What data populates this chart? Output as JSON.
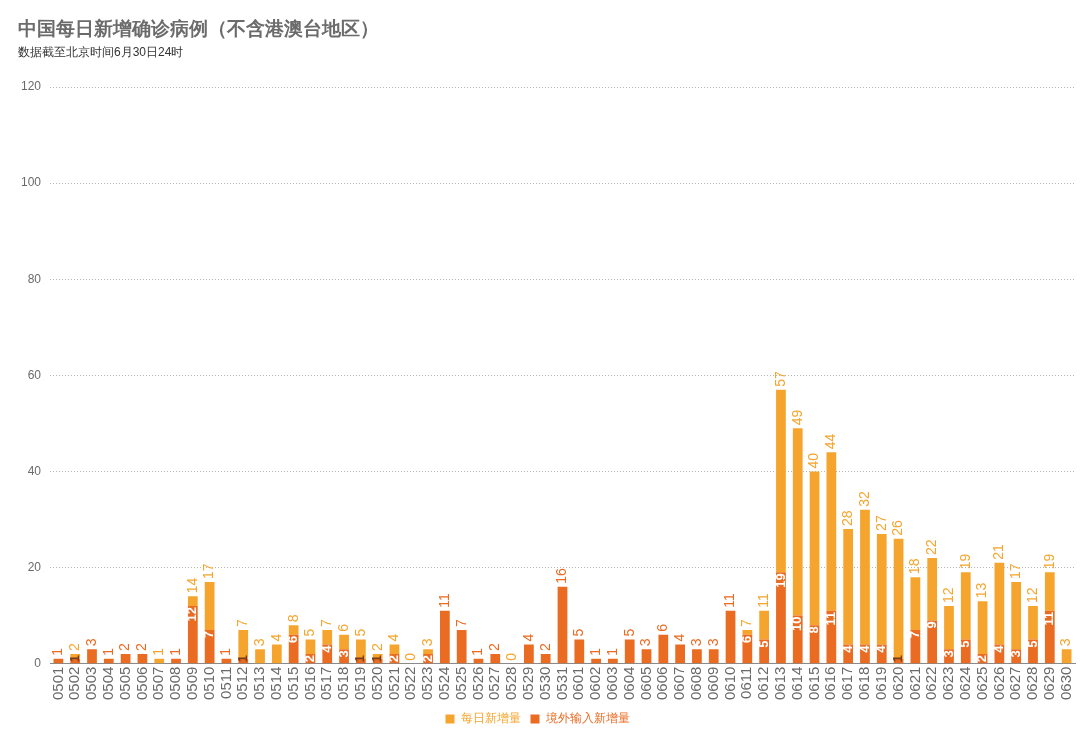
{
  "chart_data": {
    "type": "bar",
    "title": "中国每日新增确诊病例（不含港澳台地区）",
    "subtitle": "数据截至北京时间6月30日24时",
    "categories": [
      "0501",
      "0502",
      "0503",
      "0504",
      "0505",
      "0506",
      "0507",
      "0508",
      "0509",
      "0510",
      "0511",
      "0512",
      "0513",
      "0514",
      "0515",
      "0516",
      "0517",
      "0518",
      "0519",
      "0520",
      "0521",
      "0522",
      "0523",
      "0524",
      "0525",
      "0526",
      "0527",
      "0528",
      "0529",
      "0530",
      "0531",
      "0601",
      "0602",
      "0603",
      "0604",
      "0605",
      "0606",
      "0607",
      "0608",
      "0609",
      "0610",
      "0611",
      "0612",
      "0613",
      "0614",
      "0615",
      "0616",
      "0617",
      "0618",
      "0619",
      "0620",
      "0621",
      "0622",
      "0623",
      "0624",
      "0625",
      "0626",
      "0627",
      "0628",
      "0629",
      "0630"
    ],
    "stacked": true,
    "series": [
      {
        "name": "境外输入新增量",
        "color": "#ea6b22",
        "values": [
          1,
          1,
          3,
          1,
          2,
          2,
          0,
          1,
          12,
          7,
          1,
          1,
          0,
          0,
          6,
          2,
          4,
          3,
          1,
          1,
          2,
          0,
          2,
          11,
          7,
          1,
          2,
          0,
          4,
          2,
          16,
          5,
          1,
          1,
          5,
          3,
          6,
          4,
          3,
          3,
          11,
          6,
          5,
          19,
          10,
          8,
          11,
          4,
          4,
          4,
          1,
          7,
          9,
          3,
          5,
          2,
          4,
          3,
          5,
          11,
          0
        ],
        "value_labels": [
          "1",
          "1",
          "3",
          "1",
          "2",
          "2",
          null,
          "1",
          "12",
          "7",
          "1",
          "1",
          null,
          null,
          "6",
          "2",
          "4",
          "3",
          "1",
          "1",
          "2",
          null,
          "2",
          "11",
          "7",
          "1",
          "2",
          null,
          "4",
          "2",
          "16",
          "5",
          "1",
          "1",
          "5",
          "3",
          "6",
          "4",
          "3",
          "3",
          "11",
          "6",
          "5",
          "19",
          "10",
          "8",
          "11",
          "4",
          "4",
          "4",
          "1",
          "7",
          "9",
          "3",
          "5",
          "2",
          "4",
          "3",
          "5",
          "11",
          null
        ]
      },
      {
        "name": "每日新增量",
        "color": "#f5a52d",
        "values": [
          0,
          1,
          0,
          0,
          0,
          0,
          1,
          0,
          2,
          10,
          0,
          6,
          3,
          4,
          2,
          3,
          3,
          3,
          4,
          1,
          2,
          0,
          1,
          0,
          0,
          0,
          0,
          0,
          0,
          0,
          0,
          0,
          0,
          0,
          0,
          0,
          0,
          0,
          0,
          0,
          0,
          1,
          6,
          38,
          39,
          32,
          33,
          24,
          28,
          23,
          25,
          11,
          13,
          9,
          14,
          11,
          17,
          14,
          7,
          8,
          3
        ],
        "value_labels": [
          null,
          null,
          null,
          null,
          null,
          null,
          "1",
          null,
          null,
          null,
          null,
          null,
          "3",
          "4",
          null,
          null,
          null,
          null,
          null,
          null,
          null,
          null,
          null,
          null,
          null,
          null,
          null,
          null,
          null,
          null,
          null,
          null,
          null,
          null,
          null,
          null,
          null,
          null,
          null,
          null,
          null,
          null,
          null,
          null,
          null,
          null,
          null,
          null,
          null,
          null,
          null,
          null,
          null,
          null,
          null,
          null,
          null,
          null,
          null,
          null,
          "3"
        ]
      }
    ],
    "totals": [
      null,
      "2",
      null,
      null,
      null,
      null,
      null,
      null,
      "14",
      "17",
      null,
      "7",
      null,
      null,
      "8",
      "5",
      "7",
      "6",
      "5",
      "2",
      "4",
      "0",
      "3",
      null,
      null,
      null,
      null,
      "0",
      null,
      null,
      null,
      null,
      null,
      null,
      null,
      null,
      null,
      null,
      null,
      null,
      null,
      "7",
      "11",
      "57",
      "49",
      "40",
      "44",
      "28",
      "32",
      "27",
      "26",
      "18",
      "22",
      "12",
      "19",
      "13",
      "21",
      "17",
      "12",
      "19",
      null
    ],
    "ylim": [
      0,
      120
    ],
    "yticks": [
      0,
      20,
      40,
      60,
      80,
      100,
      120
    ],
    "grid": "y",
    "legend": "bottom"
  }
}
